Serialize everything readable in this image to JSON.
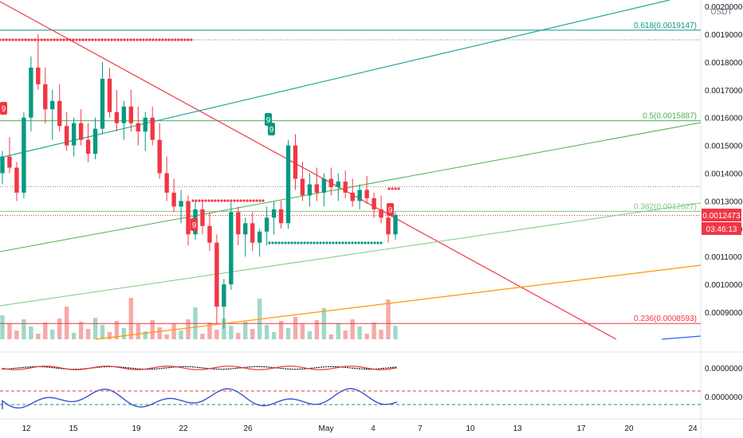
{
  "chart_data": {
    "type": "candlestick",
    "currency": "USDT",
    "current_price": "0.0012473",
    "countdown": "03:46:13",
    "price_axis": {
      "min": 0.00082,
      "max": 0.002,
      "ticks": [
        "0.0020000",
        "0.0019000",
        "0.0018000",
        "0.0017000",
        "0.0016000",
        "0.0015000",
        "0.0014000",
        "0.0013000",
        "0.0012000",
        "0.0011000",
        "0.0010000",
        "0.0009000"
      ]
    },
    "x_ticks": [
      "12",
      "15",
      "19",
      "22",
      "26",
      "May",
      "4",
      "7",
      "10",
      "13",
      "17",
      "20",
      "24"
    ],
    "fib_levels": [
      {
        "label": "0.618(0.0019147)",
        "price": 0.0019147,
        "color": "#089981"
      },
      {
        "label": "0.5(0.0015887)",
        "price": 0.0015887,
        "color": "#4caf50"
      },
      {
        "label": "0.382(0.0012627)",
        "price": 0.0012627,
        "color": "#81c784"
      },
      {
        "label": "0.236(0.0008593)",
        "price": 0.0008593,
        "color": "#f23645"
      }
    ],
    "horizontal_levels": [
      {
        "price": 0.00188,
        "style": "dotted",
        "color": "#787b86"
      },
      {
        "price": 0.001352,
        "style": "dotted",
        "color": "#787b86"
      },
      {
        "price": 0.001248,
        "style": "dotted",
        "color": "#f23645"
      }
    ],
    "indicator_axis": [
      "0.0000000",
      "0.0000000"
    ],
    "sequential_labels": [
      "9",
      "9",
      "9",
      "9",
      "9"
    ],
    "colors": {
      "up": "#089981",
      "down": "#f23645",
      "volume_up": "#9fd8c9",
      "volume_down": "#f7a9a7",
      "price_tag": "#f23645"
    },
    "candles": [
      [
        1.4,
        1.48,
        1.36,
        1.46
      ],
      [
        1.46,
        1.53,
        1.4,
        1.42
      ],
      [
        1.42,
        1.44,
        1.3,
        1.33
      ],
      [
        1.33,
        1.62,
        1.31,
        1.6
      ],
      [
        1.6,
        1.82,
        1.55,
        1.78
      ],
      [
        1.78,
        1.9,
        1.7,
        1.72
      ],
      [
        1.72,
        1.78,
        1.58,
        1.63
      ],
      [
        1.63,
        1.7,
        1.52,
        1.66
      ],
      [
        1.66,
        1.72,
        1.55,
        1.57
      ],
      [
        1.57,
        1.62,
        1.48,
        1.5
      ],
      [
        1.5,
        1.6,
        1.46,
        1.58
      ],
      [
        1.58,
        1.63,
        1.5,
        1.52
      ],
      [
        1.52,
        1.58,
        1.44,
        1.47
      ],
      [
        1.47,
        1.6,
        1.45,
        1.56
      ],
      [
        1.56,
        1.8,
        1.54,
        1.74
      ],
      [
        1.74,
        1.78,
        1.6,
        1.62
      ],
      [
        1.62,
        1.7,
        1.55,
        1.58
      ],
      [
        1.58,
        1.66,
        1.52,
        1.64
      ],
      [
        1.64,
        1.7,
        1.55,
        1.58
      ],
      [
        1.58,
        1.64,
        1.5,
        1.55
      ],
      [
        1.55,
        1.62,
        1.48,
        1.6
      ],
      [
        1.6,
        1.64,
        1.5,
        1.52
      ],
      [
        1.52,
        1.58,
        1.38,
        1.4
      ],
      [
        1.4,
        1.46,
        1.3,
        1.33
      ],
      [
        1.33,
        1.38,
        1.26,
        1.28
      ],
      [
        1.28,
        1.34,
        1.22,
        1.3
      ],
      [
        1.3,
        1.32,
        1.14,
        1.18
      ],
      [
        1.18,
        1.3,
        1.16,
        1.27
      ],
      [
        1.27,
        1.3,
        1.18,
        1.21
      ],
      [
        1.21,
        1.26,
        1.12,
        1.15
      ],
      [
        1.15,
        1.18,
        0.86,
        0.92
      ],
      [
        0.92,
        1.02,
        0.84,
        1.0
      ],
      [
        1.0,
        1.3,
        0.98,
        1.26
      ],
      [
        1.26,
        1.28,
        1.14,
        1.18
      ],
      [
        1.18,
        1.24,
        1.1,
        1.22
      ],
      [
        1.22,
        1.26,
        1.12,
        1.15
      ],
      [
        1.15,
        1.2,
        1.1,
        1.19
      ],
      [
        1.19,
        1.28,
        1.14,
        1.24
      ],
      [
        1.24,
        1.3,
        1.18,
        1.27
      ],
      [
        1.27,
        1.3,
        1.2,
        1.22
      ],
      [
        1.22,
        1.52,
        1.2,
        1.5
      ],
      [
        1.5,
        1.54,
        1.34,
        1.38
      ],
      [
        1.38,
        1.44,
        1.3,
        1.32
      ],
      [
        1.32,
        1.4,
        1.28,
        1.36
      ],
      [
        1.36,
        1.42,
        1.3,
        1.33
      ],
      [
        1.33,
        1.4,
        1.28,
        1.38
      ],
      [
        1.38,
        1.42,
        1.32,
        1.35
      ],
      [
        1.35,
        1.4,
        1.3,
        1.37
      ],
      [
        1.37,
        1.41,
        1.31,
        1.33
      ],
      [
        1.33,
        1.38,
        1.28,
        1.3
      ],
      [
        1.3,
        1.36,
        1.27,
        1.34
      ],
      [
        1.34,
        1.39,
        1.29,
        1.31
      ],
      [
        1.31,
        1.33,
        1.24,
        1.27
      ],
      [
        1.27,
        1.32,
        1.22,
        1.24
      ],
      [
        1.24,
        1.28,
        1.15,
        1.18
      ],
      [
        1.18,
        1.26,
        1.16,
        1.25
      ]
    ]
  }
}
